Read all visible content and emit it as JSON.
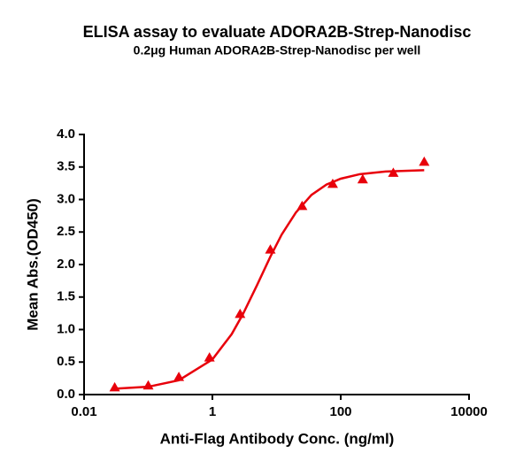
{
  "chart_data": {
    "type": "scatter",
    "title": "ELISA assay to evaluate ADORA2B-Strep-Nanodisc",
    "subtitle": "0.2μg Human ADORA2B-Strep-Nanodisc per well",
    "x_label": "Anti-Flag Antibody Conc. (ng/ml)",
    "y_label": "Mean Abs.(OD450)",
    "x_scale": "log",
    "x": [
      0.03,
      0.1,
      0.3,
      0.9,
      2.7,
      8,
      25,
      75,
      220,
      660,
      2000
    ],
    "values": [
      0.11,
      0.14,
      0.27,
      0.57,
      1.24,
      2.23,
      2.9,
      3.24,
      3.31,
      3.41,
      3.58
    ],
    "color": "#e8000b",
    "marker": "triangle",
    "curve": {
      "x": [
        0.03,
        0.1,
        0.3,
        1,
        2,
        3,
        5,
        8,
        12,
        20,
        35,
        60,
        100,
        200,
        500,
        1000,
        2000
      ],
      "values": [
        0.09,
        0.12,
        0.22,
        0.54,
        0.93,
        1.24,
        1.69,
        2.12,
        2.46,
        2.8,
        3.07,
        3.23,
        3.32,
        3.39,
        3.43,
        3.44,
        3.45
      ]
    },
    "xlim": [
      0.01,
      10000
    ],
    "xticks": [
      0.01,
      1,
      100,
      10000
    ],
    "ylim": [
      0,
      4
    ],
    "yticks": [
      {
        "value": 0,
        "label": "0.0"
      },
      {
        "value": 0.5,
        "label": "0.5"
      },
      {
        "value": 1,
        "label": "1.0"
      },
      {
        "value": 1.5,
        "label": "1.5"
      },
      {
        "value": 2,
        "label": "2.0"
      },
      {
        "value": 2.5,
        "label": "2.5"
      },
      {
        "value": 3,
        "label": "3.0"
      },
      {
        "value": 3.5,
        "label": "3.5"
      },
      {
        "value": 4,
        "label": "4.0"
      }
    ]
  }
}
